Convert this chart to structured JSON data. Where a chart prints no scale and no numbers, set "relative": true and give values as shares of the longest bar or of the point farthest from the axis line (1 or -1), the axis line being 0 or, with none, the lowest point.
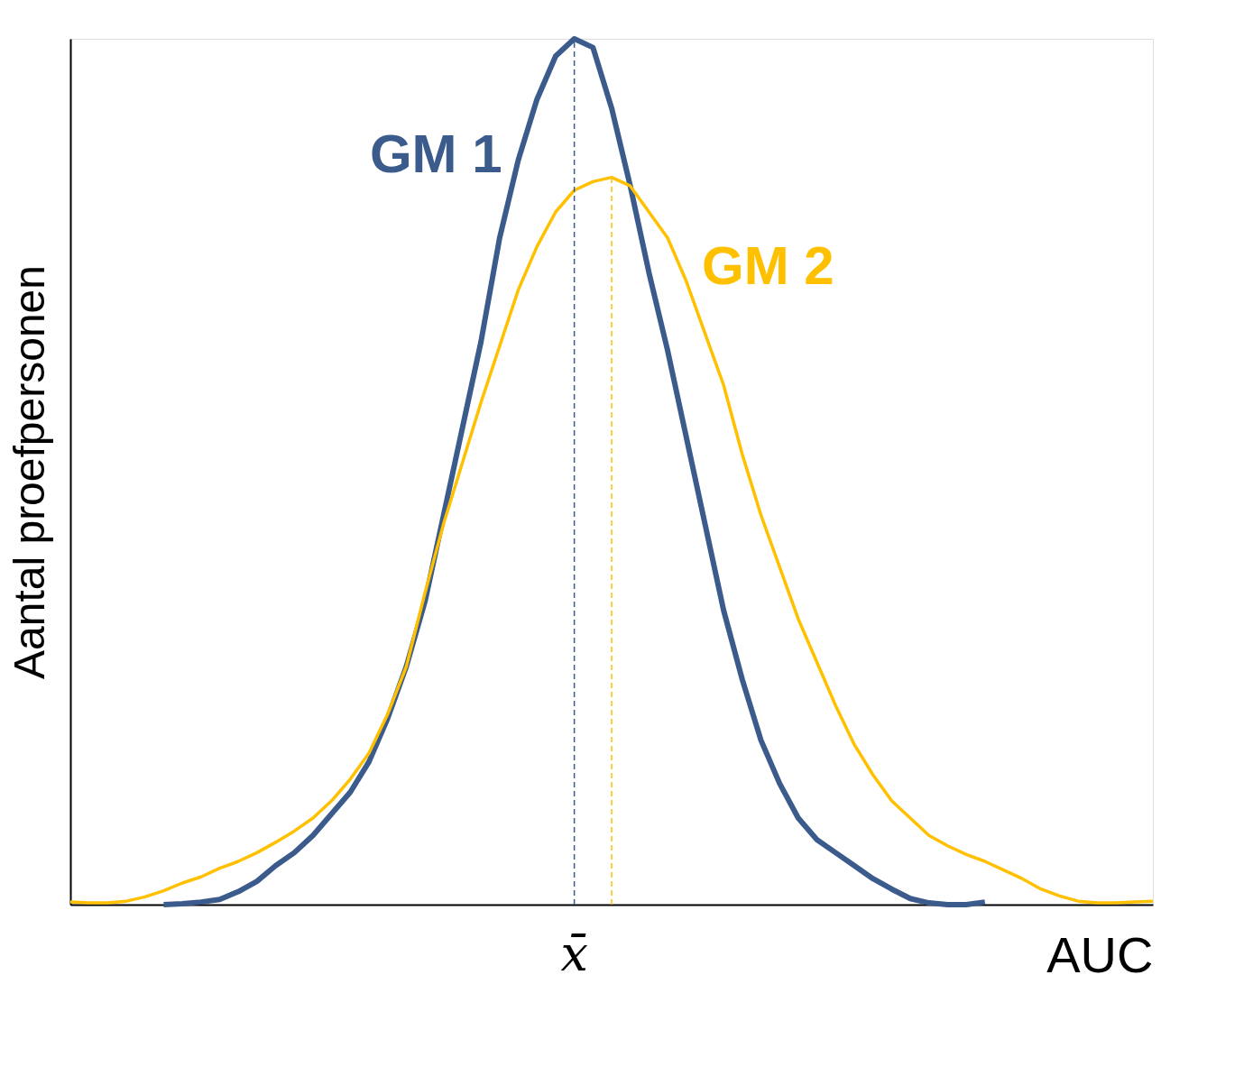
{
  "chart_data": {
    "type": "line",
    "relative": true,
    "xlabel": "AUC",
    "ylabel": "Aantal proefpersonen",
    "tick_labels": false,
    "grid": false,
    "legend": false,
    "marker": "none",
    "line_style": "solid",
    "categories": [
      null,
      null,
      null,
      null,
      null,
      null,
      null,
      null,
      null,
      null,
      null,
      null,
      null,
      null,
      null,
      null,
      null,
      null,
      null,
      null,
      null,
      null,
      null,
      null,
      null,
      null,
      null,
      null,
      null,
      null,
      null,
      null,
      null,
      null,
      null,
      null,
      null,
      null,
      null,
      null,
      null,
      null,
      null,
      null,
      null,
      null,
      null,
      null,
      null,
      null,
      null,
      null,
      null,
      null,
      null,
      null,
      null,
      null,
      null
    ],
    "series": [
      {
        "name": "GM 1",
        "color": "#3b5b8c",
        "values": [
          null,
          null,
          null,
          null,
          null,
          0,
          0.001,
          0.003,
          0.006,
          0.015,
          0.027,
          0.045,
          0.06,
          0.08,
          0.105,
          0.13,
          0.165,
          0.215,
          0.275,
          0.35,
          0.45,
          0.55,
          0.65,
          0.77,
          0.86,
          0.93,
          0.98,
          1,
          0.99,
          0.92,
          0.83,
          0.73,
          0.64,
          0.54,
          0.44,
          0.34,
          0.26,
          0.19,
          0.14,
          0.1,
          0.075,
          0.06,
          0.045,
          0.03,
          0.018,
          0.007,
          0.002,
          0,
          0,
          0.003,
          null,
          null,
          null,
          null,
          null,
          null,
          null,
          null,
          null
        ]
      },
      {
        "name": "GM 2",
        "color": "#ffc000",
        "values": [
          0.003,
          0.002,
          0.002,
          0.004,
          0.009,
          0.016,
          0.025,
          0.032,
          0.042,
          0.05,
          0.06,
          0.072,
          0.085,
          0.1,
          0.12,
          0.145,
          0.175,
          0.22,
          0.275,
          0.36,
          0.44,
          0.51,
          0.58,
          0.645,
          0.71,
          0.76,
          0.8,
          0.825,
          0.835,
          0.84,
          0.83,
          0.8,
          0.77,
          0.72,
          0.66,
          0.6,
          0.52,
          0.45,
          0.39,
          0.33,
          0.28,
          0.23,
          0.185,
          0.15,
          0.12,
          0.1,
          0.08,
          0.068,
          0.058,
          0.05,
          0.04,
          0.03,
          0.018,
          0.01,
          0.004,
          0.002,
          0.002,
          0.003,
          0.004
        ]
      }
    ],
    "annotations": [
      "x̄"
    ]
  }
}
